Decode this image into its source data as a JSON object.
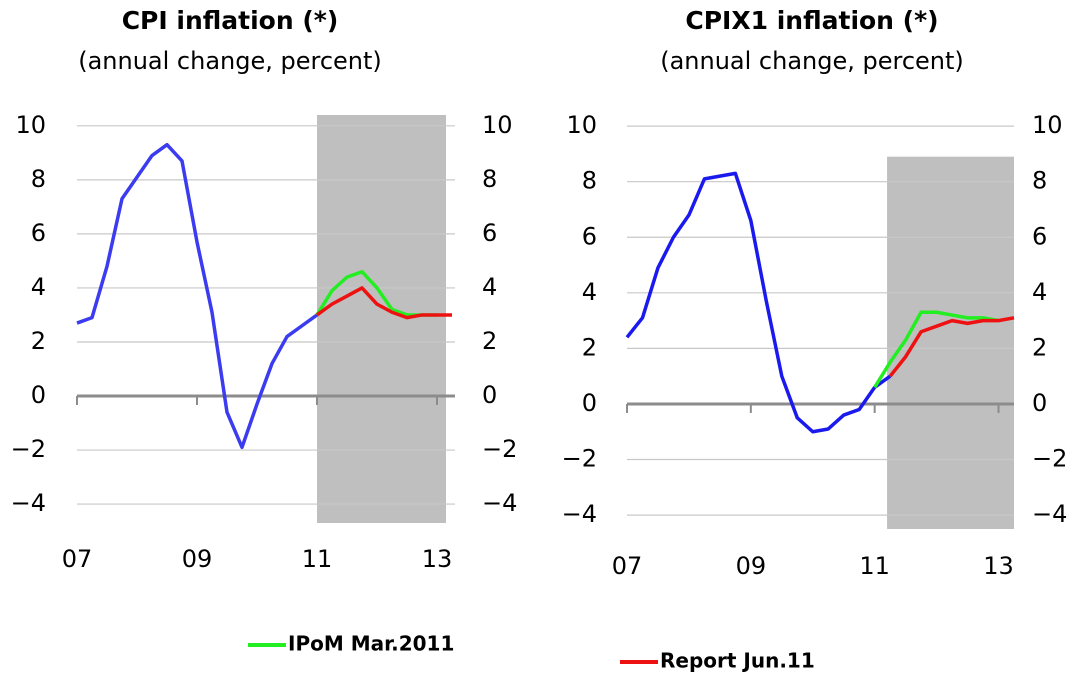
{
  "chart_data": [
    {
      "type": "line",
      "title": "CPI inflation (*)",
      "subtitle": "(annual change, percent)",
      "x": [
        7,
        7.25,
        7.5,
        7.75,
        8,
        8.25,
        8.5,
        8.75,
        9,
        9.25,
        9.5,
        9.75,
        10,
        10.25,
        10.5,
        10.75,
        11,
        11.25,
        11.5,
        11.75,
        12,
        12.25,
        12.5,
        12.75,
        13,
        13.25
      ],
      "series": [
        {
          "color": "#3b3bf0",
          "values": [
            2.7,
            2.9,
            4.8,
            7.3,
            8.1,
            8.9,
            9.3,
            8.7,
            5.7,
            3.1,
            -0.6,
            -1.9,
            -0.3,
            1.2,
            2.2,
            2.6,
            3.0,
            null,
            null,
            null,
            null,
            null,
            null,
            null,
            null,
            null
          ]
        },
        {
          "name": "IPoM Mar.2011",
          "color": "#22ee22",
          "values": [
            null,
            null,
            null,
            null,
            null,
            null,
            null,
            null,
            null,
            null,
            null,
            null,
            null,
            null,
            null,
            null,
            3.0,
            3.9,
            4.4,
            4.6,
            4.0,
            3.2,
            3.0,
            3.0,
            3.0,
            null
          ]
        },
        {
          "color": "#ee1111",
          "values": [
            null,
            null,
            null,
            null,
            null,
            null,
            null,
            null,
            null,
            null,
            null,
            null,
            null,
            null,
            null,
            null,
            3.0,
            3.4,
            3.7,
            4.0,
            3.4,
            3.1,
            2.9,
            3.0,
            3.0,
            3.0
          ]
        }
      ],
      "xlim": [
        7,
        13.3
      ],
      "xticks": [
        {
          "value": 7,
          "label": "07"
        },
        {
          "value": 9,
          "label": "09"
        },
        11,
        13
      ],
      "ylim": [
        -4.7,
        10.4
      ],
      "yticks": [
        {
          "value": -4,
          "label": "−4"
        },
        {
          "value": -2,
          "label": "−2"
        },
        0,
        2,
        4,
        6,
        8,
        10
      ],
      "y2lim": [
        -4.7,
        10.4
      ],
      "y2ticks": [
        {
          "value": -4,
          "label": "−4"
        },
        {
          "value": -2,
          "label": "−2"
        },
        0,
        2,
        4,
        6,
        8,
        10
      ],
      "shaded_xlim": [
        11,
        13.15
      ],
      "shaded_ylim": [
        -4.7,
        10.4
      ],
      "shade_color": "#bfbfbf",
      "grid": true
    },
    {
      "type": "line",
      "title": "CPIX1 inflation (*)",
      "subtitle": "(annual change, percent)",
      "x": [
        7,
        7.25,
        7.5,
        7.75,
        8,
        8.25,
        8.5,
        8.75,
        9,
        9.25,
        9.5,
        9.75,
        10,
        10.25,
        10.5,
        10.75,
        11,
        11.25,
        11.5,
        11.75,
        12,
        12.25,
        12.5,
        12.75,
        13,
        13.25
      ],
      "series": [
        {
          "color": "#1a1aee",
          "values": [
            2.4,
            3.1,
            4.9,
            6.0,
            6.8,
            8.1,
            8.2,
            8.3,
            6.6,
            3.7,
            1.0,
            -0.5,
            -1.0,
            -0.9,
            -0.4,
            -0.2,
            0.6,
            1.0,
            null,
            null,
            null,
            null,
            null,
            null,
            null,
            null
          ]
        },
        {
          "color": "#22ee22",
          "values": [
            null,
            null,
            null,
            null,
            null,
            null,
            null,
            null,
            null,
            null,
            null,
            null,
            null,
            null,
            null,
            null,
            0.6,
            1.5,
            2.3,
            3.3,
            3.3,
            3.2,
            3.1,
            3.1,
            3.0,
            null
          ]
        },
        {
          "name": "Report Jun.11",
          "color": "#ee1111",
          "values": [
            null,
            null,
            null,
            null,
            null,
            null,
            null,
            null,
            null,
            null,
            null,
            null,
            null,
            null,
            null,
            null,
            null,
            1.0,
            1.7,
            2.6,
            2.8,
            3.0,
            2.9,
            3.0,
            3.0,
            3.1
          ]
        }
      ],
      "xlim": [
        7,
        13.25
      ],
      "xticks": [
        {
          "value": 7,
          "label": "07"
        },
        {
          "value": 9,
          "label": "09"
        },
        11,
        13
      ],
      "ylim": [
        -4.5,
        10.4
      ],
      "yticks": [
        {
          "value": -4,
          "label": "−4"
        },
        {
          "value": -2,
          "label": "−2"
        },
        0,
        2,
        4,
        6,
        8,
        10
      ],
      "y2lim": [
        -4.5,
        10.4
      ],
      "y2ticks": [
        {
          "value": -4,
          "label": "−4"
        },
        {
          "value": -2,
          "label": "−2"
        },
        0,
        2,
        4,
        6,
        8,
        10
      ],
      "shaded_xlim": [
        11.2,
        13.25
      ],
      "shaded_ylim": [
        -4.5,
        8.9
      ],
      "shade_color": "#bfbfbf",
      "grid": true
    }
  ]
}
